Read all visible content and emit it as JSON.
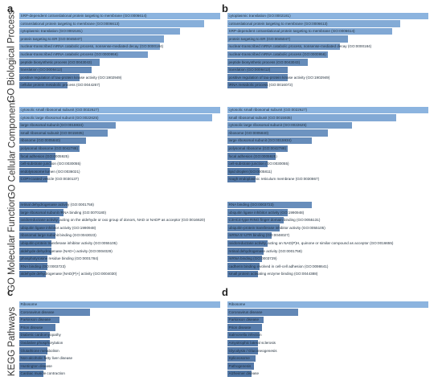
{
  "panel_labels": [
    "a",
    "b",
    "c",
    "d"
  ],
  "row_titles": [
    "GO Biological Process",
    "GO Cellular Component",
    "GO Molecular Function",
    "KEGG Pathways"
  ],
  "colors": {
    "bar_high": "#8cb4df",
    "bar_mid": "#6d93c0",
    "bar_low": "#4a6f9f"
  },
  "chart_data": [
    {
      "type": "bar",
      "panel": "a",
      "section": "GO Biological Process",
      "categories": [
        "SRP-dependent cotranslational protein targeting to membrane (GO:0006614)",
        "cotranslational protein targeting to membrane (GO:0006613)",
        "cytoplasmic translation (GO:0002181)",
        "protein targeting to ER (GO:0045047)",
        "nuclear-transcribed mRNA catabolic process, nonsense-mediated decay (GO:0000184)",
        "nuclear-transcribed mRNA catabolic process (GO:0000956)",
        "peptide biosynthetic process (GO:0043043)",
        "translation (GO:0006412)",
        "positive regulation of tau-protein kinase activity (GO:1902949)",
        "cellular protein metabolic process (GO:0044267)"
      ],
      "values": [
        1.0,
        0.92,
        0.8,
        0.72,
        0.7,
        0.64,
        0.4,
        0.36,
        0.3,
        0.24
      ]
    },
    {
      "type": "bar",
      "panel": "b",
      "section": "GO Biological Process",
      "categories": [
        "cytoplasmic translation (GO:0002181)",
        "cotranslational protein targeting to membrane (GO:0006613)",
        "SRP-dependent cotranslational protein targeting to membrane (GO:0006614)",
        "protein targeting to ER (GO:0045047)",
        "nuclear-transcribed mRNA catabolic process, nonsense-mediated decay (GO:0000184)",
        "nuclear-transcribed mRNA catabolic process (GO:0000956)",
        "peptide biosynthetic process (GO:0043043)",
        "translation (GO:0006412)",
        "positive regulation of tau-protein kinase activity (GO:1902949)",
        "tRNA metabolic process (GO:0016072)"
      ],
      "values": [
        1.0,
        0.86,
        0.82,
        0.6,
        0.56,
        0.5,
        0.4,
        0.3,
        0.3,
        0.2
      ]
    },
    {
      "type": "bar",
      "panel": "a",
      "section": "GO Cellular Component",
      "categories": [
        "cytosolic small ribosomal subunit (GO:0022627)",
        "cytosolic large ribosomal subunit (GO:0022625)",
        "large ribosomal subunit (GO:0015934)",
        "small ribosomal subunit (GO:0015935)",
        "ribosome (GO:0005840)",
        "polysomal ribosome (GO:0042788)",
        "focal adhesion (GO:0005925)",
        "cell-substrate junction (GO:0030055)",
        "endolysosome lumen (GO:0036021)",
        "COPI-coated vesicle (GO:0030137)"
      ],
      "values": [
        1.0,
        0.96,
        0.48,
        0.44,
        0.33,
        0.3,
        0.18,
        0.16,
        0.15,
        0.14
      ]
    },
    {
      "type": "bar",
      "panel": "b",
      "section": "GO Cellular Component",
      "categories": [
        "cytosolic small ribosomal subunit (GO:0022627)",
        "small ribosomal subunit (GO:0015935)",
        "cytosolic large ribosomal subunit (GO:0022625)",
        "ribosome (GO:0005840)",
        "large ribosomal subunit (GO:0015934)",
        "polysomal ribosome (GO:0042788)",
        "focal adhesion (GO:0005925)",
        "cell-substrate junction (GO:0030055)",
        "lipid droplet (GO:0005811)",
        "rough endoplasmic reticulum membrane (GO:0030867)"
      ],
      "values": [
        1.0,
        0.84,
        0.62,
        0.5,
        0.42,
        0.3,
        0.24,
        0.2,
        0.16,
        0.14
      ]
    },
    {
      "type": "bar",
      "panel": "a",
      "section": "GO Molecular Function",
      "categories": [
        "retinal dehydrogenase activity (GO:0001758)",
        "large ribosomal subunit rRNA binding (GO:0070180)",
        "oxidoreductase activity, acting on the aldehyde or oxo group of donors, NAD or NADP as acceptor (GO:0016620)",
        "ubiquitin ligase inhibitor activity (GO:1990948)",
        "ribosomal large subunit binding (GO:0043023)",
        "ubiquitin-protein transferase inhibitor activity (GO:0055105)",
        "aldehyde dehydrogenase (NAD+) activity (GO:0004029)",
        "phosphotyrosine residue binding (GO:0001784)",
        "RNA binding (GO:0003723)",
        "aldehyde dehydrogenase [NAD(P)+] activity (GO:0004030)"
      ],
      "values": [
        0.24,
        0.22,
        0.2,
        0.18,
        0.18,
        0.16,
        0.16,
        0.14,
        0.14,
        0.13
      ]
    },
    {
      "type": "bar",
      "panel": "b",
      "section": "GO Molecular Function",
      "categories": [
        "RNA binding (GO:0003723)",
        "ubiquitin ligase inhibitor activity (GO:1990948)",
        "C3HC4-type RING finger domain binding (GO:0055131)",
        "ubiquitin-protein transferase inhibitor activity (GO:0055105)",
        "mRNA 5'-UTR binding (GO:0048027)",
        "oxidoreductase activity, acting on NAD(P)H, quinone or similar compound as acceptor (GO:0016655)",
        "retinal dehydrogenase activity (GO:0001758)",
        "mRNA binding (GO:0003729)",
        "cadherin binding involved in cell-cell adhesion (GO:0098641)",
        "small protein activating enzyme binding (GO:0044388)"
      ],
      "values": [
        0.42,
        0.3,
        0.28,
        0.26,
        0.22,
        0.2,
        0.18,
        0.17,
        0.16,
        0.15
      ]
    },
    {
      "type": "bar",
      "panel": "c",
      "section": "KEGG Pathways",
      "categories": [
        "Ribosome",
        "Coronavirus disease",
        "Parkinson disease",
        "Prion disease",
        "Diabetic cardiomyopathy",
        "Oxidative phosphorylation",
        "Glutathione metabolism",
        "Non-alcoholic fatty liver disease",
        "Huntington disease",
        "Cardiac muscle contraction"
      ],
      "values": [
        1.0,
        0.35,
        0.2,
        0.18,
        0.15,
        0.15,
        0.14,
        0.13,
        0.13,
        0.12
      ]
    },
    {
      "type": "bar",
      "panel": "d",
      "section": "KEGG Pathways",
      "categories": [
        "Ribosome",
        "Coronavirus disease",
        "Parkinson disease",
        "Prion disease",
        "Salmonella infection",
        "Amyotrophic lateral sclerosis",
        "Glycolysis / Gluconeogenesis",
        "Spliceosome",
        "Pathogenesis",
        "Alzheimer disease"
      ],
      "values": [
        1.0,
        0.35,
        0.18,
        0.17,
        0.16,
        0.15,
        0.15,
        0.14,
        0.13,
        0.12
      ]
    }
  ]
}
